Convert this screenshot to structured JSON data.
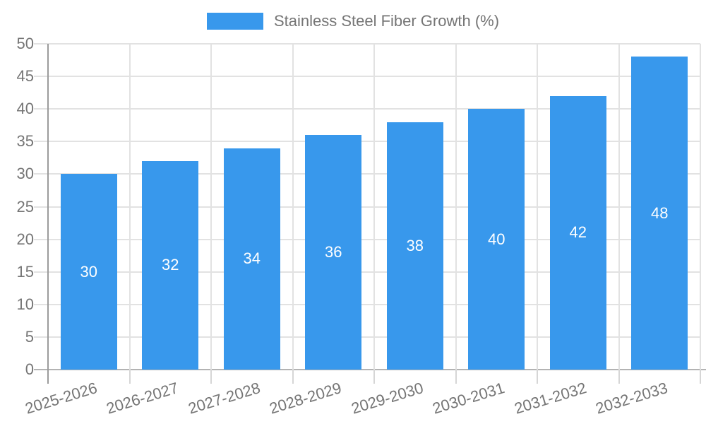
{
  "legend": {
    "swatch_color": "#3898ec"
  },
  "chart_data": {
    "type": "bar",
    "title": "Stainless Steel Fiber Growth (%)",
    "categories": [
      "2025-2026",
      "2026-2027",
      "2027-2028",
      "2028-2029",
      "2029-2030",
      "2030-2031",
      "2031-2032",
      "2032-2033"
    ],
    "series": [
      {
        "name": "Stainless Steel Fiber Growth (%)",
        "values": [
          30,
          32,
          34,
          36,
          38,
          40,
          42,
          48
        ]
      }
    ],
    "xlabel": "",
    "ylabel": "",
    "ylim": [
      0,
      50
    ],
    "ytick_step": 5,
    "yticks": [
      0,
      5,
      10,
      15,
      20,
      25,
      30,
      35,
      40,
      45,
      50
    ],
    "grid": true,
    "legend_position": "top",
    "value_labels": "inside-center",
    "x_label_rotation_deg": -17
  },
  "colors": {
    "bar": "#3898ec",
    "axis_text": "#757575",
    "value_label": "#ffffff",
    "grid": "#e2e2e2",
    "axis_line": "#9b9b9b",
    "baseline": "#b3b3b3",
    "tick": "#d6d6d6",
    "background": "#ffffff"
  }
}
